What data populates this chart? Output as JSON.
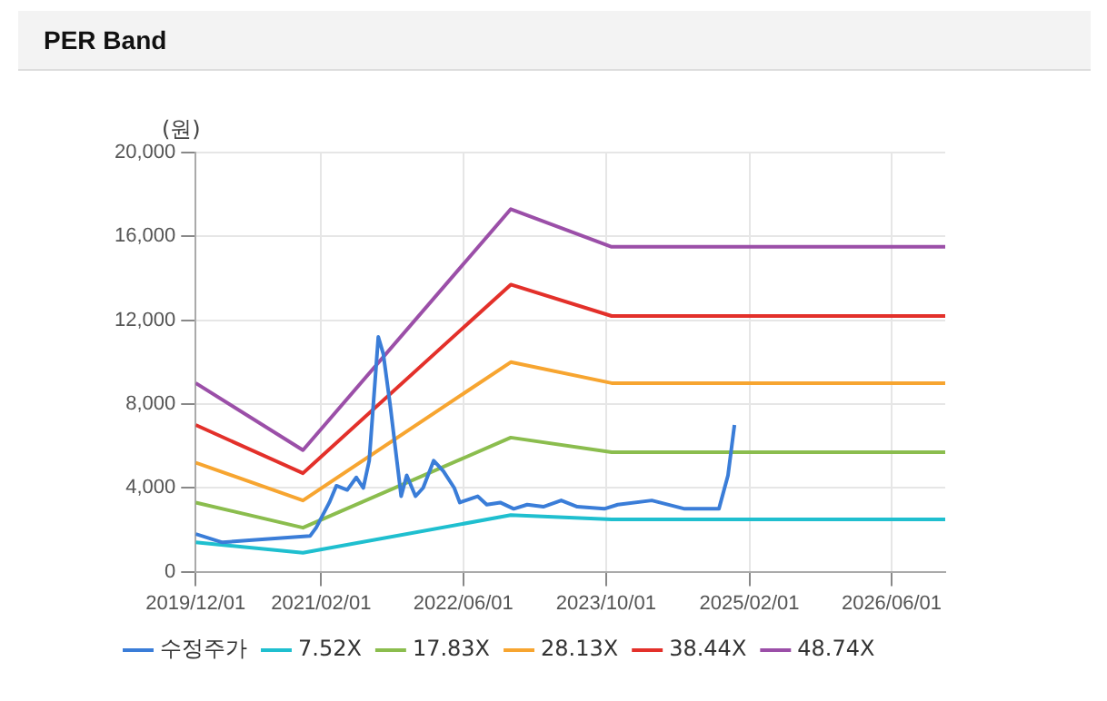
{
  "chart_data": {
    "type": "line",
    "title": "PER Band",
    "ylabel": "(원)",
    "xlim": [
      "2019-12-01",
      "2026-12-01"
    ],
    "xticks": [
      {
        "value": "2019-12-01",
        "label": "2019/12/01"
      },
      {
        "value": "2021-02-01",
        "label": "2021/02/01"
      },
      {
        "value": "2022-06-01",
        "label": "2022/06/01"
      },
      {
        "value": "2023-10-01",
        "label": "2023/10/01"
      },
      {
        "value": "2025-02-01",
        "label": "2025/02/01"
      },
      {
        "value": "2026-06-01",
        "label": "2026/06/01"
      }
    ],
    "ylim": [
      0,
      20000
    ],
    "yticks": [
      0,
      {
        "value": 4000,
        "label": "4,000"
      },
      {
        "value": 8000,
        "label": "8,000"
      },
      {
        "value": 12000,
        "label": "12,000"
      },
      {
        "value": 16000,
        "label": "16,000"
      },
      {
        "value": 20000,
        "label": "20,000"
      }
    ],
    "grid": true,
    "legend": "bottom",
    "marker": "none",
    "line_style": "solid",
    "series": [
      {
        "name": "수정주가",
        "color": "#3a7dd8",
        "x": [
          "2019-12-01",
          "2020-03-01",
          "2020-06-01",
          "2020-12-25",
          "2021-01-15",
          "2021-03-01",
          "2021-03-25",
          "2021-05-01",
          "2021-06-01",
          "2021-06-25",
          "2021-07-15",
          "2021-08-15",
          "2021-09-01",
          "2021-09-25",
          "2021-11-01",
          "2021-11-20",
          "2021-12-20",
          "2022-01-15",
          "2022-02-20",
          "2022-03-25",
          "2022-05-01",
          "2022-05-20",
          "2022-07-20",
          "2022-08-20",
          "2022-10-05",
          "2022-11-20",
          "2023-01-05",
          "2023-03-01",
          "2023-05-01",
          "2023-06-25",
          "2023-09-25",
          "2023-11-10",
          "2024-03-05",
          "2024-06-25",
          "2024-10-20",
          "2024-11-20",
          "2024-12-12"
        ],
        "values": [
          1800,
          1400,
          1500,
          1700,
          2100,
          3300,
          4100,
          3900,
          4500,
          4000,
          5300,
          11200,
          10400,
          7900,
          3600,
          4600,
          3600,
          4000,
          5300,
          4800,
          4000,
          3300,
          3600,
          3200,
          3300,
          3000,
          3200,
          3100,
          3400,
          3100,
          3000,
          3200,
          3400,
          3000,
          3000,
          4600,
          7000
        ]
      },
      {
        "name": "7.52X",
        "color": "#1fbfcf",
        "x": [
          "2019-12-01",
          "2020-12-01",
          "2022-11-10",
          "2023-10-20",
          "2026-12-01"
        ],
        "values": [
          1400,
          900,
          2700,
          2500,
          2500
        ]
      },
      {
        "name": "17.83X",
        "color": "#8bbd4e",
        "x": [
          "2019-12-01",
          "2020-12-01",
          "2022-11-10",
          "2023-10-20",
          "2026-12-01"
        ],
        "values": [
          3300,
          2100,
          6400,
          5700,
          5700
        ]
      },
      {
        "name": "28.13X",
        "color": "#f7a530",
        "x": [
          "2019-12-01",
          "2020-12-01",
          "2022-11-10",
          "2023-10-20",
          "2026-12-01"
        ],
        "values": [
          5200,
          3400,
          10000,
          9000,
          9000
        ]
      },
      {
        "name": "38.44X",
        "color": "#e3302a",
        "x": [
          "2019-12-01",
          "2020-12-01",
          "2022-11-10",
          "2023-10-20",
          "2026-12-01"
        ],
        "values": [
          7000,
          4700,
          13700,
          12200,
          12200
        ]
      },
      {
        "name": "48.74X",
        "color": "#9b4fa8",
        "x": [
          "2019-12-01",
          "2020-12-01",
          "2022-11-10",
          "2023-10-20",
          "2026-12-01"
        ],
        "values": [
          9000,
          5800,
          17300,
          15500,
          15500
        ]
      }
    ]
  }
}
